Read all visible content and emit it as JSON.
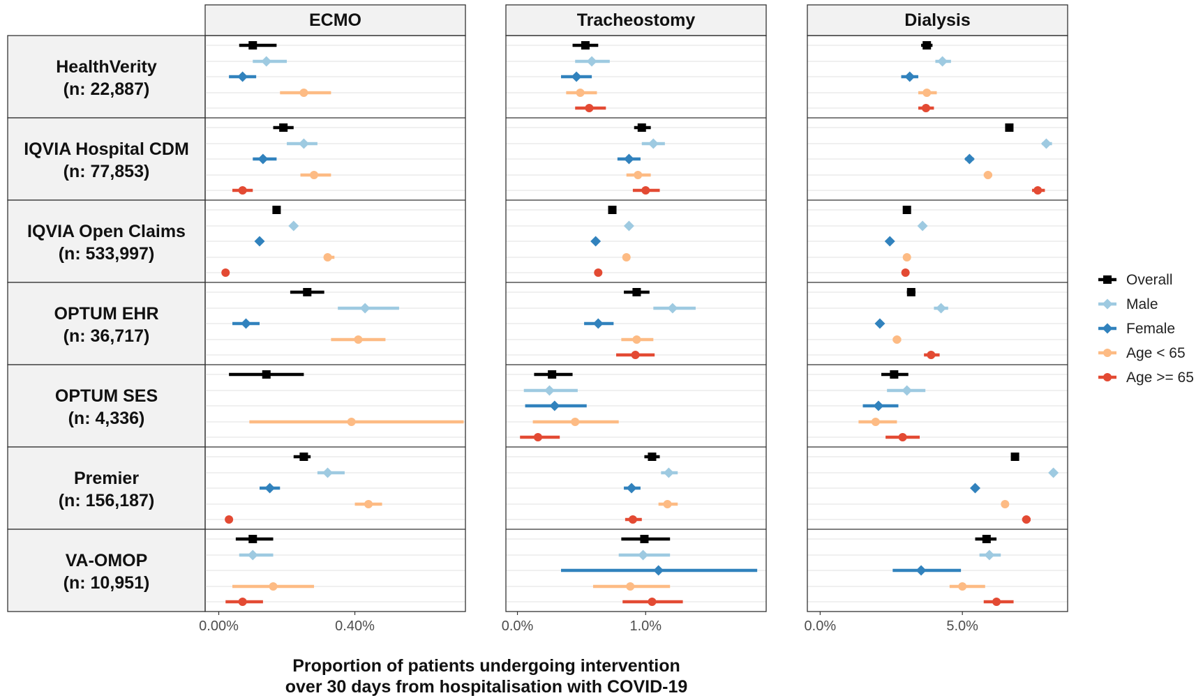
{
  "chart_data": {
    "type": "forest",
    "xlabel_lines": [
      "Proportion of patients undergoing intervention",
      "over 30 days from hospitalisation with COVID-19"
    ],
    "legend": {
      "placement": "right",
      "entries": [
        {
          "key": "overall",
          "label": "Overall",
          "color": "#000000",
          "shape": "square"
        },
        {
          "key": "male",
          "label": "Male",
          "color": "#9ecae1",
          "shape": "diamond"
        },
        {
          "key": "female",
          "label": "Female",
          "color": "#3182bd",
          "shape": "diamond"
        },
        {
          "key": "age_lt65",
          "label": "Age < 65",
          "color": "#fdbb84",
          "shape": "circle"
        },
        {
          "key": "age_ge65",
          "label": "Age >= 65",
          "color": "#e34a33",
          "shape": "circle"
        }
      ]
    },
    "databases": [
      {
        "name": "HealthVerity",
        "n": "(n: 22,887)"
      },
      {
        "name": "IQVIA Hospital CDM",
        "n": "(n: 77,853)"
      },
      {
        "name": "IQVIA Open Claims",
        "n": "(n: 533,997)"
      },
      {
        "name": "OPTUM EHR",
        "n": "(n: 36,717)"
      },
      {
        "name": "OPTUM SES",
        "n": "(n: 4,336)"
      },
      {
        "name": "Premier",
        "n": "(n: 156,187)"
      },
      {
        "name": "VA-OMOP",
        "n": "(n: 10,951)"
      }
    ],
    "panels": [
      {
        "title": "ECMO",
        "xlim": [
          -0.04,
          0.725
        ],
        "ticks": [
          {
            "value": 0.0,
            "label": "0.00%"
          },
          {
            "value": 0.4,
            "label": "0.40%"
          }
        ],
        "units": "percent",
        "rows": [
          {
            "overall": [
              0.1,
              0.06,
              0.17
            ],
            "male": [
              0.14,
              0.1,
              0.2
            ],
            "female": [
              0.07,
              0.03,
              0.11
            ],
            "age_lt65": [
              0.25,
              0.18,
              0.33
            ],
            "age_ge65": null
          },
          {
            "overall": [
              0.19,
              0.16,
              0.22
            ],
            "male": [
              0.25,
              0.2,
              0.29
            ],
            "female": [
              0.13,
              0.1,
              0.17
            ],
            "age_lt65": [
              0.28,
              0.24,
              0.33
            ],
            "age_ge65": [
              0.07,
              0.04,
              0.1
            ]
          },
          {
            "overall": [
              0.17,
              0.17,
              0.17
            ],
            "male": [
              0.22,
              0.22,
              0.22
            ],
            "female": [
              0.12,
              0.12,
              0.12
            ],
            "age_lt65": [
              0.32,
              0.31,
              0.34
            ],
            "age_ge65": [
              0.02,
              0.02,
              0.02
            ]
          },
          {
            "overall": [
              0.26,
              0.21,
              0.31
            ],
            "male": [
              0.43,
              0.35,
              0.53
            ],
            "female": [
              0.08,
              0.04,
              0.12
            ],
            "age_lt65": [
              0.41,
              0.33,
              0.49
            ],
            "age_ge65": null
          },
          {
            "overall": [
              0.14,
              0.03,
              0.25
            ],
            "male": null,
            "female": null,
            "age_lt65": [
              0.39,
              0.09,
              0.72
            ],
            "age_ge65": null
          },
          {
            "overall": [
              0.25,
              0.22,
              0.27
            ],
            "male": [
              0.32,
              0.29,
              0.37
            ],
            "female": [
              0.15,
              0.12,
              0.18
            ],
            "age_lt65": [
              0.44,
              0.4,
              0.48
            ],
            "age_ge65": [
              0.03,
              0.03,
              0.03
            ]
          },
          {
            "overall": [
              0.1,
              0.05,
              0.16
            ],
            "male": [
              0.1,
              0.06,
              0.16
            ],
            "female": null,
            "age_lt65": [
              0.16,
              0.04,
              0.28
            ],
            "age_ge65": [
              0.07,
              0.02,
              0.13
            ]
          }
        ]
      },
      {
        "title": "Tracheostomy",
        "xlim": [
          -0.09,
          1.94
        ],
        "ticks": [
          {
            "value": 0.0,
            "label": "0.0%"
          },
          {
            "value": 1.0,
            "label": "1.0%"
          }
        ],
        "units": "percent",
        "rows": [
          {
            "overall": [
              0.53,
              0.43,
              0.63
            ],
            "male": [
              0.58,
              0.45,
              0.72
            ],
            "female": [
              0.46,
              0.34,
              0.58
            ],
            "age_lt65": [
              0.49,
              0.38,
              0.62
            ],
            "age_ge65": [
              0.56,
              0.45,
              0.69
            ]
          },
          {
            "overall": [
              0.97,
              0.91,
              1.04
            ],
            "male": [
              1.06,
              0.97,
              1.15
            ],
            "female": [
              0.87,
              0.78,
              0.96
            ],
            "age_lt65": [
              0.94,
              0.85,
              1.04
            ],
            "age_ge65": [
              1.0,
              0.9,
              1.11
            ]
          },
          {
            "overall": [
              0.74,
              0.74,
              0.74
            ],
            "male": [
              0.87,
              0.87,
              0.87
            ],
            "female": [
              0.61,
              0.61,
              0.61
            ],
            "age_lt65": [
              0.85,
              0.84,
              0.87
            ],
            "age_ge65": [
              0.63,
              0.63,
              0.63
            ]
          },
          {
            "overall": [
              0.93,
              0.83,
              1.03
            ],
            "male": [
              1.21,
              1.06,
              1.39
            ],
            "female": [
              0.63,
              0.52,
              0.75
            ],
            "age_lt65": [
              0.93,
              0.81,
              1.06
            ],
            "age_ge65": [
              0.92,
              0.77,
              1.07
            ]
          },
          {
            "overall": [
              0.27,
              0.13,
              0.43
            ],
            "male": [
              0.25,
              0.05,
              0.47
            ],
            "female": [
              0.29,
              0.06,
              0.54
            ],
            "age_lt65": [
              0.45,
              0.12,
              0.79
            ],
            "age_ge65": [
              0.16,
              0.02,
              0.33
            ]
          },
          {
            "overall": [
              1.05,
              0.99,
              1.11
            ],
            "male": [
              1.18,
              1.12,
              1.25
            ],
            "female": [
              0.89,
              0.83,
              0.96
            ],
            "age_lt65": [
              1.17,
              1.1,
              1.25
            ],
            "age_ge65": [
              0.9,
              0.84,
              0.97
            ]
          },
          {
            "overall": [
              0.99,
              0.81,
              1.19
            ],
            "male": [
              0.98,
              0.79,
              1.19
            ],
            "female": [
              1.1,
              0.34,
              1.87
            ],
            "age_lt65": [
              0.88,
              0.59,
              1.19
            ],
            "age_ge65": [
              1.05,
              0.82,
              1.29
            ]
          }
        ]
      },
      {
        "title": "Dialysis",
        "xlim": [
          -0.45,
          8.7
        ],
        "ticks": [
          {
            "value": 0.0,
            "label": "0.0%"
          },
          {
            "value": 5.0,
            "label": "5.0%"
          }
        ],
        "units": "percent",
        "rows": [
          {
            "overall": [
              3.75,
              3.55,
              3.95
            ],
            "male": [
              4.3,
              4.05,
              4.6
            ],
            "female": [
              3.15,
              2.85,
              3.45
            ],
            "age_lt65": [
              3.75,
              3.45,
              4.1
            ],
            "age_ge65": [
              3.72,
              3.45,
              4.0
            ]
          },
          {
            "overall": [
              6.65,
              6.55,
              6.75
            ],
            "male": [
              7.95,
              7.8,
              8.15
            ],
            "female": [
              5.25,
              5.1,
              5.4
            ],
            "age_lt65": [
              5.9,
              5.75,
              6.05
            ],
            "age_ge65": [
              7.65,
              7.45,
              7.9
            ]
          },
          {
            "overall": [
              3.05,
              3.05,
              3.05
            ],
            "male": [
              3.6,
              3.6,
              3.6
            ],
            "female": [
              2.45,
              2.45,
              2.45
            ],
            "age_lt65": [
              3.05,
              3.05,
              3.05
            ],
            "age_ge65": [
              3.0,
              3.0,
              3.0
            ]
          },
          {
            "overall": [
              3.2,
              3.05,
              3.35
            ],
            "male": [
              4.25,
              4.0,
              4.5
            ],
            "female": [
              2.1,
              2.0,
              2.2
            ],
            "age_lt65": [
              2.7,
              2.55,
              2.85
            ],
            "age_ge65": [
              3.9,
              3.65,
              4.2
            ]
          },
          {
            "overall": [
              2.6,
              2.15,
              3.1
            ],
            "male": [
              3.05,
              2.35,
              3.7
            ],
            "female": [
              2.05,
              1.5,
              2.75
            ],
            "age_lt65": [
              1.95,
              1.35,
              2.7
            ],
            "age_ge65": [
              2.9,
              2.3,
              3.5
            ]
          },
          {
            "overall": [
              6.85,
              6.8,
              6.9
            ],
            "male": [
              8.2,
              8.15,
              8.25
            ],
            "female": [
              5.45,
              5.35,
              5.55
            ],
            "age_lt65": [
              6.5,
              6.4,
              6.6
            ],
            "age_ge65": [
              7.25,
              7.1,
              7.4
            ]
          },
          {
            "overall": [
              5.85,
              5.45,
              6.2
            ],
            "male": [
              5.95,
              5.6,
              6.35
            ],
            "female": [
              3.55,
              2.55,
              4.95
            ],
            "age_lt65": [
              5.0,
              4.55,
              5.8
            ],
            "age_ge65": [
              6.2,
              5.75,
              6.8
            ]
          }
        ]
      }
    ]
  }
}
